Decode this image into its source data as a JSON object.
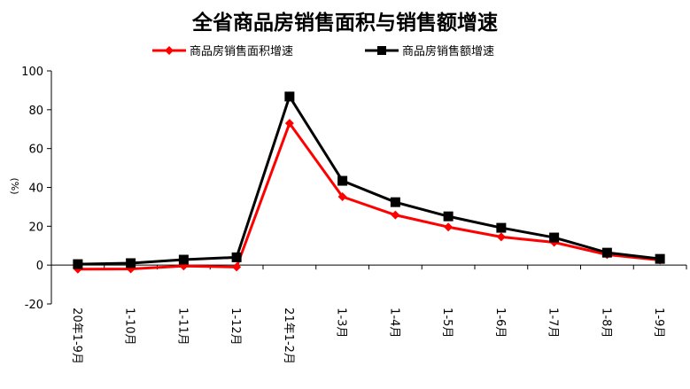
{
  "chart_data": {
    "type": "line",
    "title": "全省商品房销售面积与销售额增速",
    "ylabel": "(%)",
    "ylim": [
      -20,
      100
    ],
    "yticks": [
      -20,
      0,
      20,
      40,
      60,
      80,
      100
    ],
    "categories": [
      "20年1-9月",
      "1-10月",
      "1-11月",
      "1-12月",
      "21年1-2月",
      "1-3月",
      "1-4月",
      "1-5月",
      "1-6月",
      "1-7月",
      "1-8月",
      "1-9月"
    ],
    "legend_position": "top",
    "grid": false,
    "series": [
      {
        "name": "商品房销售面积增速",
        "color": "#ff0000",
        "marker": "diamond",
        "values": [
          -2.1,
          -2.0,
          -0.5,
          -1.0,
          73.0,
          35.2,
          25.8,
          19.6,
          14.5,
          11.7,
          5.4,
          2.6
        ]
      },
      {
        "name": "商品房销售额增速",
        "color": "#000000",
        "marker": "square",
        "values": [
          0.5,
          1.0,
          2.8,
          4.0,
          86.8,
          43.4,
          32.4,
          25.1,
          19.2,
          14.2,
          6.4,
          3.2
        ]
      }
    ]
  }
}
